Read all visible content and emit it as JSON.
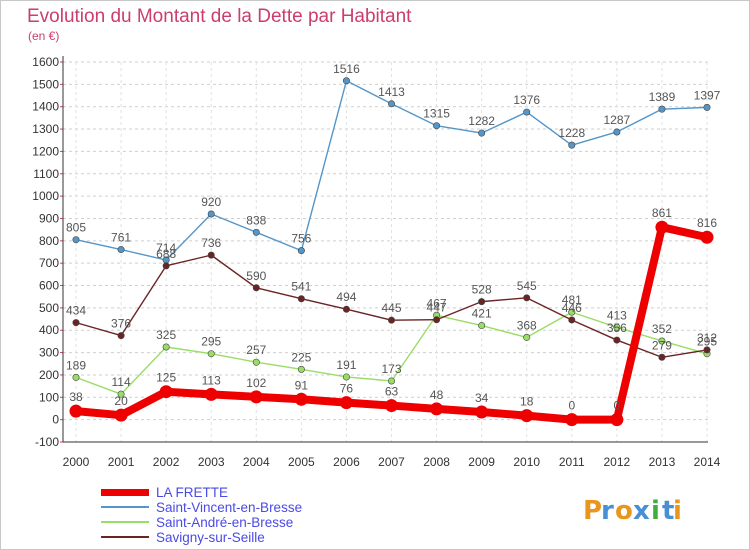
{
  "chart_data": {
    "type": "line",
    "title": "Evolution du Montant de la Dette par Habitant",
    "subtitle": "(en €)",
    "xlabel": "",
    "ylabel": "",
    "ylim": [
      -100,
      1600
    ],
    "y_ticks": [
      -100,
      0,
      100,
      200,
      300,
      400,
      500,
      600,
      700,
      800,
      900,
      1000,
      1100,
      1200,
      1300,
      1400,
      1500,
      1600
    ],
    "x": [
      "2000",
      "2001",
      "2002",
      "2003",
      "2004",
      "2005",
      "2006",
      "2007",
      "2008",
      "2009",
      "2010",
      "2011",
      "2012",
      "2013",
      "2014"
    ],
    "grid": "horizontal dashed",
    "legend_position": "bottom-left",
    "series": [
      {
        "name": "Saint-Vincent-en-Bresse",
        "color": "#5596c8",
        "values": [
          805,
          761,
          714,
          920,
          838,
          756,
          1516,
          1413,
          1315,
          1282,
          1376,
          1228,
          1287,
          1389,
          1397
        ]
      },
      {
        "name": "Saint-André-en-Bresse",
        "color": "#99dd66",
        "values": [
          189,
          114,
          325,
          295,
          257,
          225,
          191,
          173,
          467,
          421,
          368,
          481,
          413,
          352,
          295
        ]
      },
      {
        "name": "Savigny-sur-Seille",
        "color": "#6b2424",
        "values": [
          434,
          376,
          688,
          736,
          590,
          541,
          494,
          445,
          447,
          528,
          545,
          446,
          356,
          279,
          312
        ]
      },
      {
        "name": "LA FRETTE",
        "color": "#ee0000",
        "values": [
          38,
          20,
          125,
          113,
          102,
          91,
          76,
          63,
          48,
          34,
          18,
          0,
          0,
          861,
          816
        ]
      }
    ]
  },
  "legend": {
    "items": [
      {
        "label": "LA FRETTE",
        "color": "#ee0000"
      },
      {
        "label": "Saint-Vincent-en-Bresse",
        "color": "#5596c8"
      },
      {
        "label": "Saint-André-en-Bresse",
        "color": "#99dd66"
      },
      {
        "label": "Savigny-sur-Seille",
        "color": "#6b2424"
      }
    ]
  },
  "brand": {
    "logo_text": "Proxiti",
    "letter_colors": [
      "#e8961e",
      "#4a8fd6",
      "#e8961e",
      "#4a8fd6",
      "#3fae3f",
      "#4a8fd6",
      "#e8961e"
    ]
  }
}
